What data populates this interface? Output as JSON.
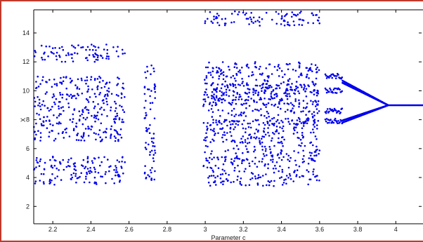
{
  "chart_data": {
    "type": "scatter",
    "title": "",
    "xlabel": "Parameter c",
    "ylabel": "X",
    "xlim": [
      2.1,
      4.15
    ],
    "ylim": [
      0.8,
      15.6
    ],
    "grid": false,
    "legend": "none",
    "series_color": "#0000ee",
    "x_ticks": [
      2.2,
      2.4,
      2.6,
      2.8,
      3,
      3.2,
      3.4,
      3.6,
      3.8,
      4
    ],
    "x_tick_labels": [
      "2.2",
      "2.4",
      "2.6",
      "2.8",
      "3",
      "3.2",
      "3.4",
      "3.6",
      "3.8",
      "4"
    ],
    "y_ticks": [
      2,
      4,
      6,
      8,
      10,
      12,
      14
    ],
    "y_tick_labels": [
      "2",
      "4",
      "6",
      "8",
      "10",
      "12",
      "14"
    ],
    "x_range_bands": [
      [
        2.1,
        2.6
      ],
      [
        2.68,
        2.74
      ],
      [
        2.99,
        3.6
      ],
      [
        3.6,
        4.15
      ]
    ],
    "period_doubling": {
      "fixed_point": {
        "c_start": 3.96,
        "x": 9.0
      },
      "two_cycle": {
        "c_start": 3.72,
        "c_end": 3.96,
        "x_upper": 10.7,
        "x_lower": 7.8
      },
      "four_cycle": {
        "c_start": 3.63,
        "c_end": 3.72,
        "x_values": [
          11.0,
          10.0,
          8.6,
          7.9
        ]
      }
    },
    "chaotic_bands": [
      {
        "c_range": [
          2.1,
          2.58
        ],
        "x_bands": [
          [
            12.0,
            13.2
          ],
          [
            8.6,
            11.0
          ],
          [
            6.5,
            8.6
          ],
          [
            3.5,
            5.5
          ]
        ]
      },
      {
        "c_range": [
          2.68,
          2.74
        ],
        "x_bands": [
          [
            3.8,
            12.0
          ]
        ]
      },
      {
        "c_range": [
          2.99,
          3.6
        ],
        "x_bands": [
          [
            14.5,
            15.5
          ],
          [
            9.0,
            12.0
          ],
          [
            7.6,
            10.5
          ],
          [
            5.5,
            8.0
          ],
          [
            3.4,
            5.5
          ]
        ]
      }
    ]
  }
}
